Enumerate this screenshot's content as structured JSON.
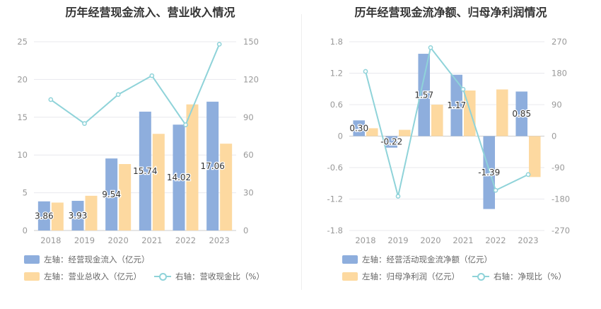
{
  "colors": {
    "bar1": "#8eaedd",
    "bar2": "#fdd9a0",
    "line": "#8fd3d9",
    "grid": "#e8e8ee",
    "axis_text": "#999999"
  },
  "chart_data": [
    {
      "type": "bar",
      "title": "历年经营现金流入、营业收入情况",
      "categories": [
        "2018",
        "2019",
        "2020",
        "2021",
        "2022",
        "2023"
      ],
      "series": [
        {
          "name": "左轴：经营现金流入（亿元）",
          "axis": "left",
          "values": [
            3.86,
            3.93,
            9.54,
            15.74,
            14.02,
            17.06
          ],
          "labels": [
            "3.86",
            "3.93",
            "9.54",
            "15.74",
            "14.02",
            "17.06"
          ]
        },
        {
          "name": "左轴：营业总收入（亿元）",
          "axis": "left",
          "values": [
            3.7,
            4.6,
            8.8,
            12.8,
            16.7,
            11.5
          ]
        },
        {
          "name": "右轴：营收现金比（%）",
          "axis": "right",
          "type": "line",
          "values": [
            104,
            85,
            108,
            123,
            84,
            148
          ]
        }
      ],
      "y_left": {
        "ticks": [
          "0",
          "5",
          "10",
          "15",
          "20",
          "25"
        ],
        "min": 0,
        "max": 25
      },
      "y_right": {
        "ticks": [
          "0",
          "30",
          "60",
          "90",
          "120",
          "150"
        ],
        "min": 0,
        "max": 150
      },
      "grid": true,
      "legend_position": "bottom"
    },
    {
      "type": "bar",
      "title": "历年经营现金流净额、归母净利润情况",
      "categories": [
        "2018",
        "2019",
        "2020",
        "2021",
        "2022",
        "2023"
      ],
      "series": [
        {
          "name": "左轴：经营活动现金流净额（亿元）",
          "axis": "left",
          "values": [
            0.3,
            -0.22,
            1.57,
            1.17,
            -1.39,
            0.85
          ],
          "labels": [
            "0.30",
            "-0.22",
            "1.57",
            "1.17",
            "-1.39",
            "0.85"
          ]
        },
        {
          "name": "左轴：归母净利润（亿元）",
          "axis": "left",
          "values": [
            0.15,
            0.12,
            0.6,
            0.87,
            0.89,
            -0.78
          ]
        },
        {
          "name": "右轴：净现比（%）",
          "axis": "right",
          "type": "line",
          "values": [
            185,
            -172,
            253,
            134,
            -155,
            -110
          ]
        }
      ],
      "y_left": {
        "ticks": [
          "-1.8",
          "-1.2",
          "-0.6",
          "0",
          "0.6",
          "1.2",
          "1.8"
        ],
        "min": -1.8,
        "max": 1.8
      },
      "y_right": {
        "ticks": [
          "-270",
          "-180",
          "-90",
          "0",
          "90",
          "180",
          "270"
        ],
        "min": -270,
        "max": 270
      },
      "grid": true,
      "legend_position": "bottom"
    }
  ]
}
